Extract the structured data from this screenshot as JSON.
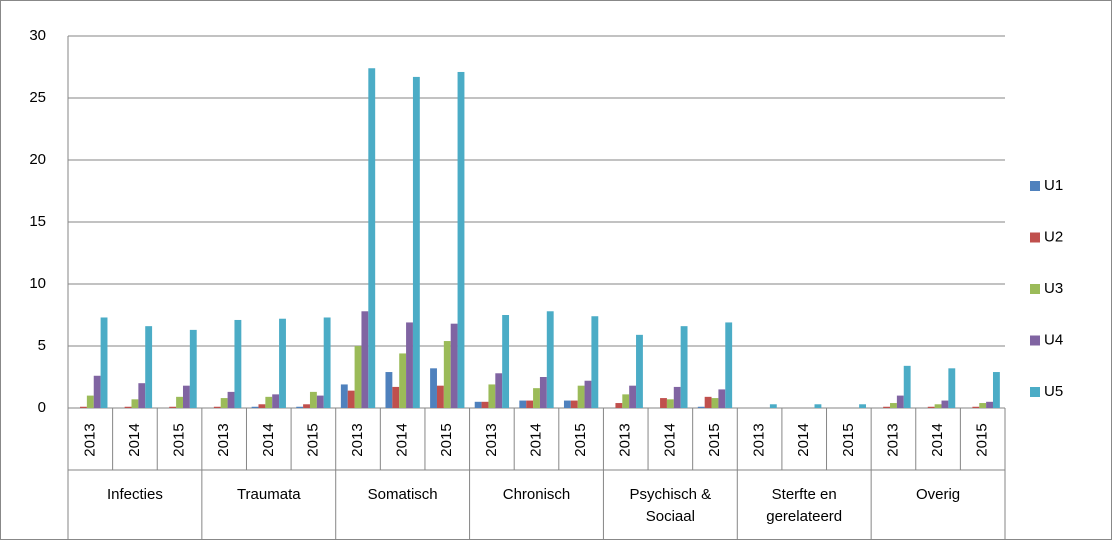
{
  "chart_data": {
    "type": "bar",
    "groups": [
      "Infecties",
      "Traumata",
      "Somatisch",
      "Chronisch",
      "Psychisch & Sociaal",
      "Sterfte en gerelateerd",
      "Overig"
    ],
    "categories": [
      "2013",
      "2014",
      "2015",
      "2013",
      "2014",
      "2015",
      "2013",
      "2014",
      "2015",
      "2013",
      "2014",
      "2015",
      "2013",
      "2014",
      "2015",
      "2013",
      "2014",
      "2015",
      "2013",
      "2014",
      "2015"
    ],
    "series": [
      {
        "name": "U1",
        "color": "#4f81bd",
        "values": [
          0,
          0,
          0,
          0,
          0.1,
          0.1,
          1.9,
          2.9,
          3.2,
          0.5,
          0.6,
          0.6,
          0,
          0,
          0.1,
          0,
          0,
          0,
          0,
          0,
          0
        ]
      },
      {
        "name": "U2",
        "color": "#c0504d",
        "values": [
          0.1,
          0.1,
          0.1,
          0.1,
          0.3,
          0.3,
          1.4,
          1.7,
          1.8,
          0.5,
          0.6,
          0.6,
          0.4,
          0.8,
          0.9,
          0,
          0,
          0,
          0.1,
          0.1,
          0.1
        ]
      },
      {
        "name": "U3",
        "color": "#9bbb59",
        "values": [
          1.0,
          0.7,
          0.9,
          0.8,
          0.9,
          1.3,
          5.0,
          4.4,
          5.4,
          1.9,
          1.6,
          1.8,
          1.1,
          0.7,
          0.8,
          0,
          0,
          0,
          0.4,
          0.3,
          0.4
        ]
      },
      {
        "name": "U4",
        "color": "#8064a2",
        "values": [
          2.6,
          2.0,
          1.8,
          1.3,
          1.1,
          1.0,
          7.8,
          6.9,
          6.8,
          2.8,
          2.5,
          2.2,
          1.8,
          1.7,
          1.5,
          0,
          0,
          0,
          1.0,
          0.6,
          0.5
        ]
      },
      {
        "name": "U5",
        "color": "#4bacc6",
        "values": [
          7.3,
          6.6,
          6.3,
          7.1,
          7.2,
          7.3,
          27.4,
          26.7,
          27.1,
          7.5,
          7.8,
          7.4,
          5.9,
          6.6,
          6.9,
          0.3,
          0.3,
          0.3,
          3.4,
          3.2,
          2.9
        ]
      }
    ],
    "ylim": [
      0,
      30
    ],
    "yticks": [
      0,
      5,
      10,
      15,
      20,
      25,
      30
    ],
    "grid": true,
    "legend": "right"
  }
}
